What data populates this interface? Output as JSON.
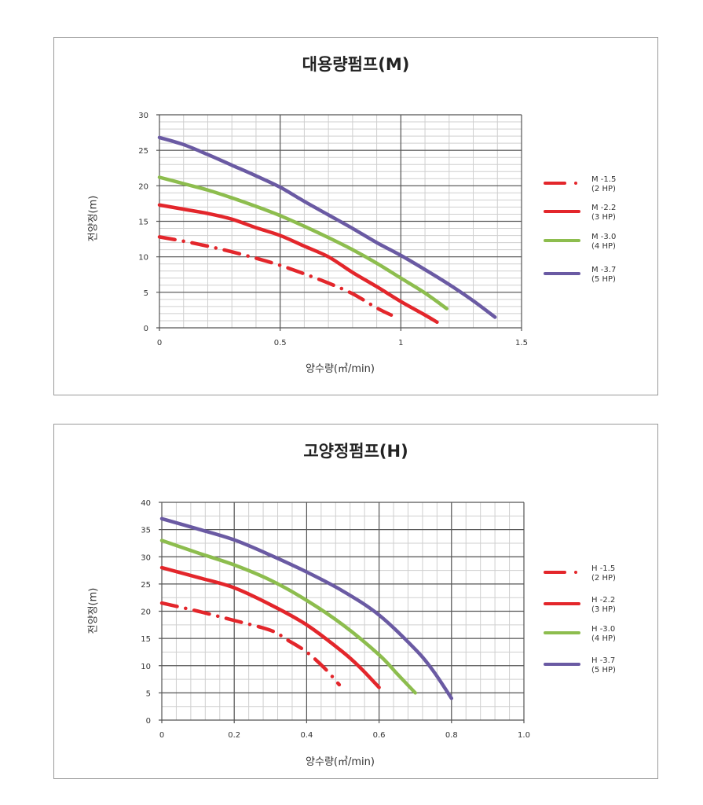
{
  "chart_data": [
    {
      "type": "line",
      "title": "대용량펌프(M)",
      "xlabel": "양수량(㎥/min)",
      "ylabel": "전양정(m)",
      "xlim": [
        0,
        1.5
      ],
      "ylim": [
        0,
        30
      ],
      "xticks": [
        "0",
        "0.5",
        "1",
        "1.5"
      ],
      "xtick_values": [
        0,
        0.5,
        1,
        1.5
      ],
      "yticks": [
        "0",
        "5",
        "10",
        "15",
        "20",
        "25",
        "30"
      ],
      "ytick_values": [
        0,
        5,
        10,
        15,
        20,
        25,
        30
      ],
      "x_minor_step": 0.1,
      "y_minor_step": 1,
      "grid": true,
      "legend_placement": "right",
      "series": [
        {
          "name": "M -1.5",
          "sub": "(2 HP)",
          "color": "#e3262b",
          "style": "dashdot",
          "x": [
            0,
            0.1,
            0.2,
            0.3,
            0.4,
            0.5,
            0.6,
            0.7,
            0.8,
            0.9,
            0.96
          ],
          "y": [
            12.8,
            12.2,
            11.5,
            10.7,
            9.8,
            8.8,
            7.6,
            6.3,
            4.8,
            2.8,
            1.8
          ]
        },
        {
          "name": "M -2.2",
          "sub": "(3 HP)",
          "color": "#e3262b",
          "style": "solid",
          "x": [
            0,
            0.1,
            0.2,
            0.3,
            0.4,
            0.5,
            0.6,
            0.7,
            0.8,
            0.9,
            1.0,
            1.1,
            1.15
          ],
          "y": [
            17.3,
            16.7,
            16.1,
            15.3,
            14.1,
            13.0,
            11.5,
            10.0,
            7.8,
            5.8,
            3.7,
            1.8,
            0.8
          ]
        },
        {
          "name": "M -3.0",
          "sub": "(4 HP)",
          "color": "#8dbd4e",
          "style": "solid",
          "x": [
            0,
            0.1,
            0.2,
            0.3,
            0.4,
            0.5,
            0.6,
            0.7,
            0.8,
            0.9,
            1.0,
            1.1,
            1.19
          ],
          "y": [
            21.2,
            20.3,
            19.4,
            18.3,
            17.1,
            15.8,
            14.3,
            12.7,
            11.0,
            9.1,
            7.0,
            4.9,
            2.7
          ]
        },
        {
          "name": "M -3.7",
          "sub": "(5 HP)",
          "color": "#6a5aa3",
          "style": "solid",
          "x": [
            0,
            0.1,
            0.2,
            0.3,
            0.4,
            0.5,
            0.6,
            0.7,
            0.8,
            0.9,
            1.0,
            1.1,
            1.2,
            1.3,
            1.39
          ],
          "y": [
            26.8,
            25.8,
            24.4,
            22.9,
            21.4,
            19.8,
            17.8,
            15.9,
            14.0,
            12.0,
            10.2,
            8.2,
            6.1,
            3.8,
            1.5
          ]
        }
      ]
    },
    {
      "type": "line",
      "title": "고양정펌프(H)",
      "xlabel": "양수량(㎥/min)",
      "ylabel": "전양정(m)",
      "xlim": [
        0,
        1.0
      ],
      "ylim": [
        0,
        40
      ],
      "xticks": [
        "0",
        "0.2",
        "0.4",
        "0.6",
        "0.8",
        "1.0"
      ],
      "xtick_values": [
        0,
        0.2,
        0.4,
        0.6,
        0.8,
        1.0
      ],
      "yticks": [
        "0",
        "5",
        "10",
        "15",
        "20",
        "25",
        "30",
        "35",
        "40"
      ],
      "ytick_values": [
        0,
        5,
        10,
        15,
        20,
        25,
        30,
        35,
        40
      ],
      "x_minor_step": 0.04,
      "y_minor_step": 2.5,
      "grid": true,
      "legend_placement": "right",
      "series": [
        {
          "name": "H -1.5",
          "sub": "(2 HP)",
          "color": "#e3262b",
          "style": "dashdot",
          "x": [
            0,
            0.1,
            0.2,
            0.3,
            0.35,
            0.4,
            0.45,
            0.49
          ],
          "y": [
            21.5,
            20.0,
            18.3,
            16.5,
            14.6,
            12.5,
            9.5,
            6.5
          ]
        },
        {
          "name": "H -2.2",
          "sub": "(3 HP)",
          "color": "#e3262b",
          "style": "solid",
          "x": [
            0,
            0.1,
            0.2,
            0.3,
            0.4,
            0.5,
            0.55,
            0.6
          ],
          "y": [
            28.0,
            26.2,
            24.3,
            21.2,
            17.5,
            12.5,
            9.5,
            6.0
          ]
        },
        {
          "name": "H -3.0",
          "sub": "(4 HP)",
          "color": "#8dbd4e",
          "style": "solid",
          "x": [
            0,
            0.1,
            0.2,
            0.3,
            0.4,
            0.5,
            0.6,
            0.65,
            0.7
          ],
          "y": [
            33.0,
            30.7,
            28.5,
            25.7,
            22.0,
            17.5,
            12.0,
            8.5,
            5.0
          ]
        },
        {
          "name": "H -3.7",
          "sub": "(5 HP)",
          "color": "#6a5aa3",
          "style": "solid",
          "x": [
            0,
            0.1,
            0.2,
            0.3,
            0.4,
            0.5,
            0.6,
            0.7,
            0.75,
            0.8
          ],
          "y": [
            37.0,
            35.1,
            33.1,
            30.3,
            27.2,
            23.7,
            19.3,
            13.0,
            9.0,
            4.0
          ]
        }
      ]
    }
  ]
}
